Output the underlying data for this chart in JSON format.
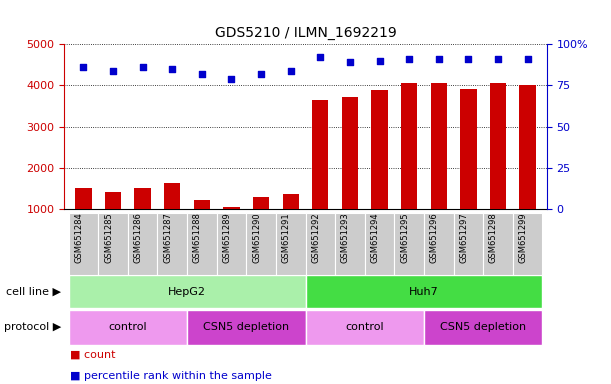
{
  "title": "GDS5210 / ILMN_1692219",
  "samples": [
    "GSM651284",
    "GSM651285",
    "GSM651286",
    "GSM651287",
    "GSM651288",
    "GSM651289",
    "GSM651290",
    "GSM651291",
    "GSM651292",
    "GSM651293",
    "GSM651294",
    "GSM651295",
    "GSM651296",
    "GSM651297",
    "GSM651298",
    "GSM651299"
  ],
  "bar_values": [
    1520,
    1430,
    1520,
    1630,
    1230,
    1060,
    1290,
    1380,
    3650,
    3720,
    3900,
    4050,
    4050,
    3920,
    4070,
    4010
  ],
  "dot_values": [
    86,
    84,
    86,
    85,
    82,
    79,
    82,
    84,
    92,
    89,
    90,
    91,
    91,
    91,
    91,
    91
  ],
  "bar_color": "#cc0000",
  "dot_color": "#0000cc",
  "ylim_left": [
    1000,
    5000
  ],
  "ylim_right": [
    0,
    100
  ],
  "yticks_left": [
    1000,
    2000,
    3000,
    4000,
    5000
  ],
  "yticks_right": [
    0,
    25,
    50,
    75,
    100
  ],
  "left_tick_labels": [
    "1000",
    "2000",
    "3000",
    "4000",
    "5000"
  ],
  "right_tick_labels": [
    "0",
    "25",
    "50",
    "75",
    "100%"
  ],
  "cell_line_groups": [
    {
      "label": "HepG2",
      "start": 0,
      "end": 7,
      "color": "#aaf0aa"
    },
    {
      "label": "Huh7",
      "start": 8,
      "end": 15,
      "color": "#44dd44"
    }
  ],
  "protocol_groups": [
    {
      "label": "control",
      "start": 0,
      "end": 3,
      "color": "#ee99ee"
    },
    {
      "label": "CSN5 depletion",
      "start": 4,
      "end": 7,
      "color": "#cc44cc"
    },
    {
      "label": "control",
      "start": 8,
      "end": 11,
      "color": "#ee99ee"
    },
    {
      "label": "CSN5 depletion",
      "start": 12,
      "end": 15,
      "color": "#cc44cc"
    }
  ],
  "legend_items": [
    {
      "label": "count",
      "color": "#cc0000"
    },
    {
      "label": "percentile rank within the sample",
      "color": "#0000cc"
    }
  ],
  "background_color": "#ffffff",
  "cell_line_label": "cell line",
  "protocol_label": "protocol",
  "xticklabel_bg": "#cccccc"
}
